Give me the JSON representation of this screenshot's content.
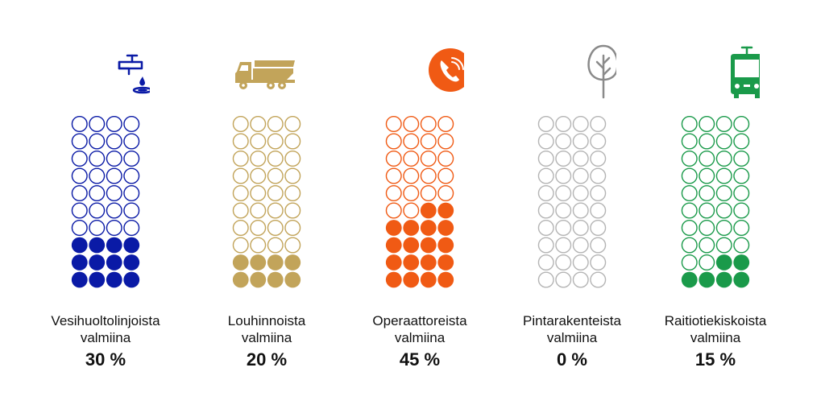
{
  "chart_data": [
    {
      "type": "waffle",
      "label_lines": [
        "Vesihuoltolinjoista",
        "valmiina"
      ],
      "percent_text": "30 %",
      "value": 30,
      "columns": 4,
      "rows": 10,
      "color": "#0a1aa6",
      "icon": "water-tap-icon"
    },
    {
      "type": "waffle",
      "label_lines": [
        "Louhinnoista",
        "valmiina"
      ],
      "percent_text": "20 %",
      "value": 20,
      "columns": 4,
      "rows": 10,
      "color": "#c2a45a",
      "icon": "dump-truck-icon"
    },
    {
      "type": "waffle",
      "label_lines": [
        "Operaattoreista",
        "valmiina"
      ],
      "percent_text": "45 %",
      "value": 45,
      "columns": 4,
      "rows": 10,
      "color": "#f05a14",
      "icon": "phone-icon"
    },
    {
      "type": "waffle",
      "label_lines": [
        "Pintarakenteista",
        "valmiina"
      ],
      "percent_text": "0 %",
      "value": 0,
      "columns": 4,
      "rows": 10,
      "color": "#b4b4b4",
      "icon": "tree-icon"
    },
    {
      "type": "waffle",
      "label_lines": [
        "Raitiotiekiskoista",
        "valmiina"
      ],
      "percent_text": "15 %",
      "value": 15,
      "columns": 4,
      "rows": 10,
      "color": "#1a9a4a",
      "icon": "tram-icon"
    }
  ]
}
